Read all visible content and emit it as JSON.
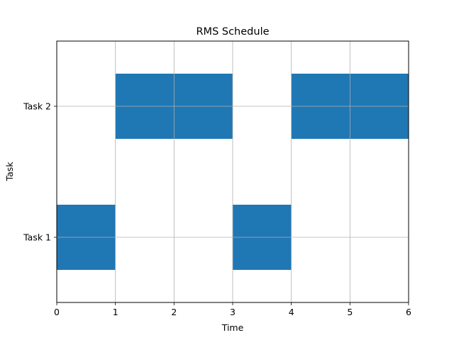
{
  "chart_data": {
    "type": "bar",
    "orientation": "horizontal-gantt",
    "title": "RMS Schedule",
    "xlabel": "Time",
    "ylabel": "Task",
    "xlim": [
      0,
      6
    ],
    "xticks": [
      0,
      1,
      2,
      3,
      4,
      5,
      6
    ],
    "categories": [
      "Task 1",
      "Task 2"
    ],
    "grid": true,
    "bar_color": "#1f77b4",
    "segments": [
      {
        "task": "Task 1",
        "start": 0,
        "end": 1
      },
      {
        "task": "Task 2",
        "start": 1,
        "end": 2
      },
      {
        "task": "Task 2",
        "start": 2,
        "end": 3
      },
      {
        "task": "Task 1",
        "start": 3,
        "end": 4
      },
      {
        "task": "Task 2",
        "start": 4,
        "end": 5
      },
      {
        "task": "Task 2",
        "start": 5,
        "end": 6
      }
    ]
  }
}
